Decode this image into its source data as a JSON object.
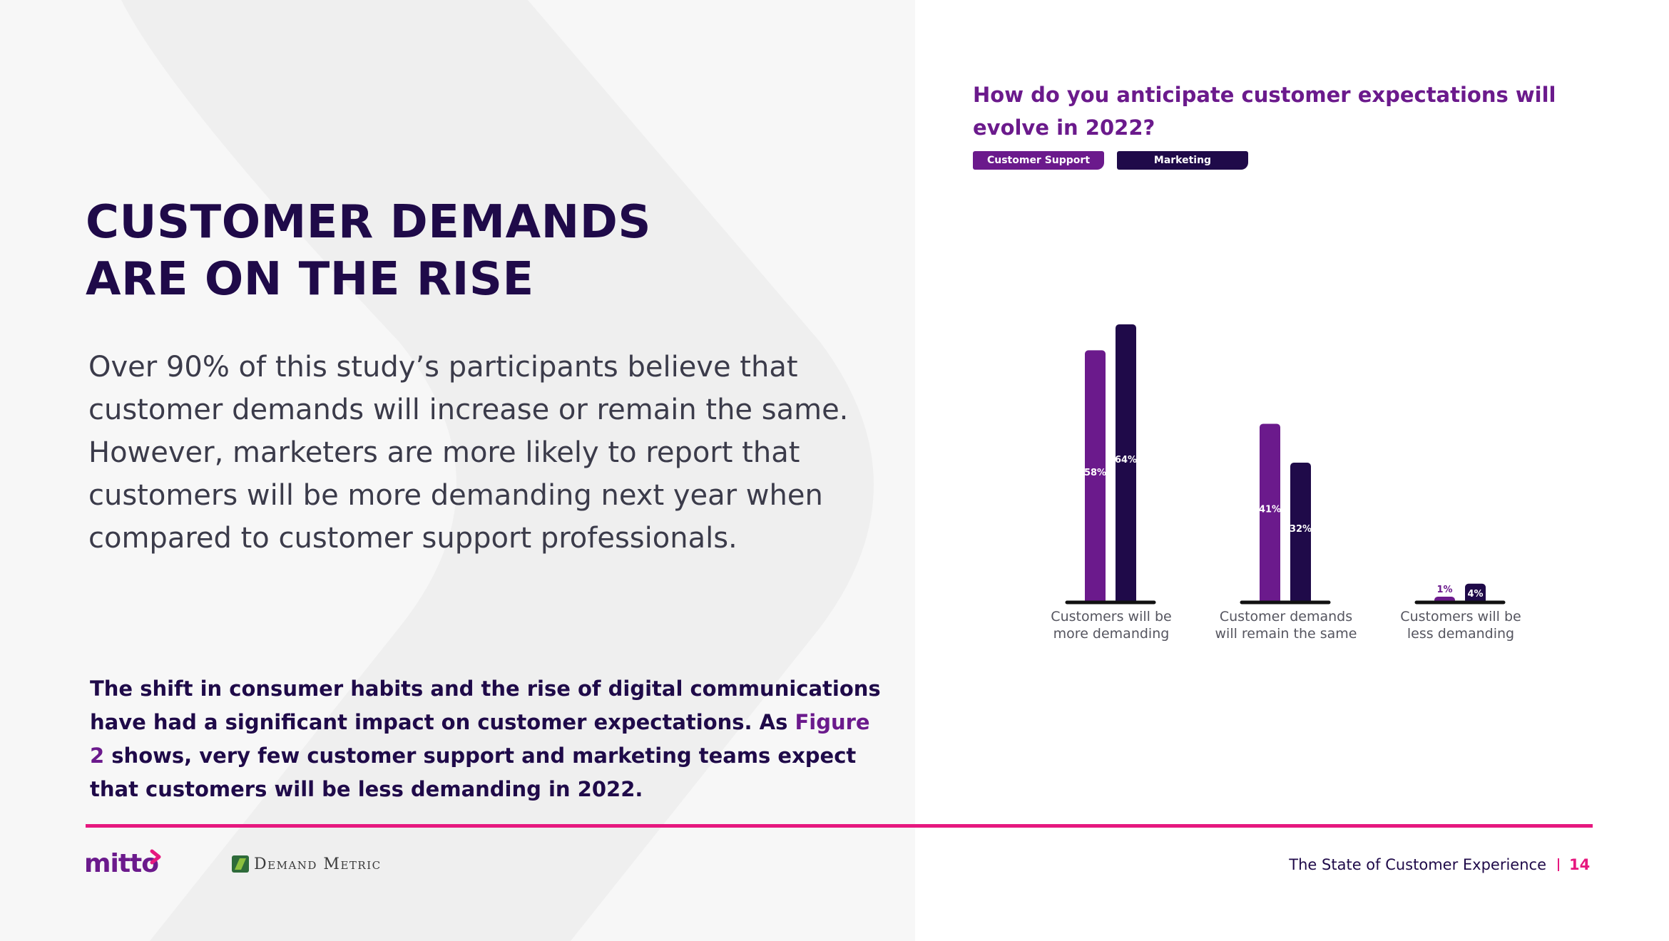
{
  "page": {
    "headline": [
      "CUSTOMER DEMANDS",
      "ARE ON THE RISE"
    ],
    "intro": "Over 90% of this study’s participants believe that customer demands will increase or remain the same. However, marketers are more likely to report that customers will be more demanding next year when compared to customer support professionals.",
    "callout": {
      "before": "The shift in consumer habits and the rise of digital communications have had a significant impact on customer expectations. As ",
      "link": "Figure 2",
      "after": " shows, very few customer support and marketing teams expect that customers will be less demanding in 2022."
    }
  },
  "colors": {
    "customer_support": "#6b1a8c",
    "marketing": "#1f0a49",
    "accent": "#e6187f",
    "heading": "#1f0a49"
  },
  "chart_data": {
    "type": "bar",
    "title": "How do you anticipate customer expectations will evolve in 2022?",
    "categories": [
      "Customers will be more demanding",
      "Customer demands will remain the same",
      "Customers will be less demanding"
    ],
    "category_lines": [
      [
        "Customers will be",
        "more demanding"
      ],
      [
        "Customer demands",
        "will remain the same"
      ],
      [
        "Customers will be",
        "less demanding"
      ]
    ],
    "series": [
      {
        "name": "Customer Support",
        "values": [
          58,
          41,
          1
        ],
        "labels": [
          "58%",
          "41%",
          "1%"
        ]
      },
      {
        "name": "Marketing",
        "values": [
          64,
          32,
          4
        ],
        "labels": [
          "64%",
          "32%",
          "4%"
        ]
      }
    ],
    "unit": "%",
    "ylim": [
      0,
      64
    ],
    "legend_position": "top-left"
  },
  "footer": {
    "logo_primary": "mitto",
    "logo_secondary": "Demand Metric",
    "report_title": "The State of Customer Experience",
    "page_number": "14"
  }
}
